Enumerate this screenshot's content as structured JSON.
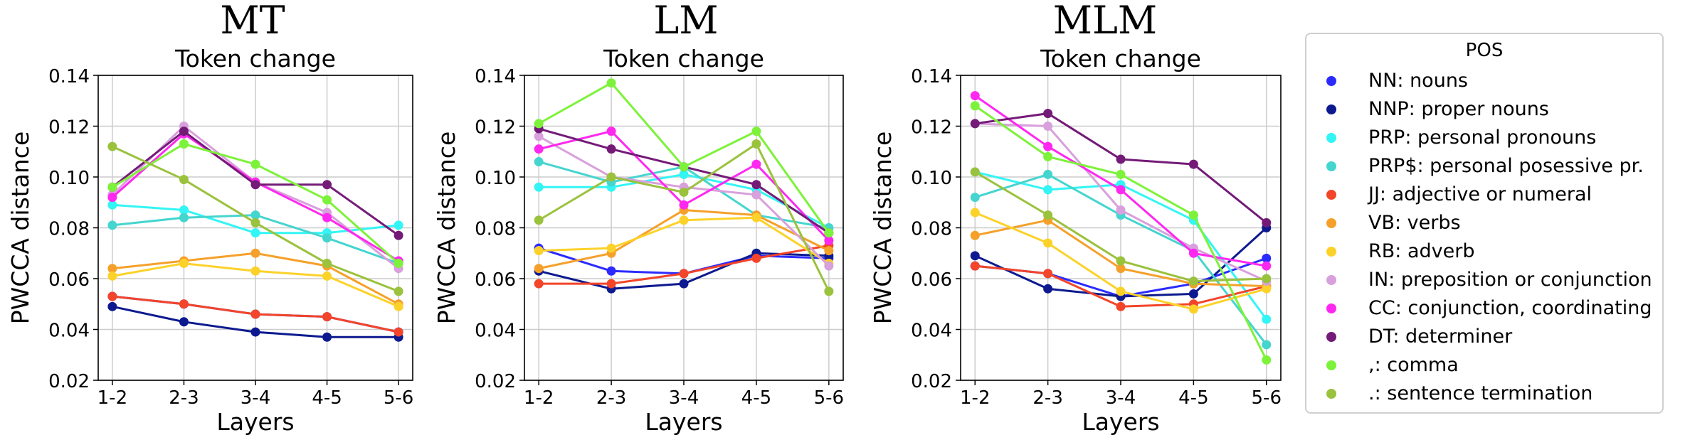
{
  "panel_titles": [
    "MT",
    "LM",
    "MLM"
  ],
  "legend": {
    "title": "POS",
    "items": [
      {
        "label": "NN: nouns",
        "color": "#2b2bff"
      },
      {
        "label": "NNP: proper nouns",
        "color": "#0d1a8f"
      },
      {
        "label": "PRP: personal pronouns",
        "color": "#33f5f5"
      },
      {
        "label": "PRP$: personal posessive pr.",
        "color": "#45d5cf"
      },
      {
        "label": "JJ: adjective or numeral",
        "color": "#f2452a"
      },
      {
        "label": "VB: verbs",
        "color": "#f5a02a"
      },
      {
        "label": "RB: adverb",
        "color": "#fcd22a"
      },
      {
        "label": "IN: preposition or conjunction",
        "color": "#d8a0dc"
      },
      {
        "label": "CC: conjunction, coordinating",
        "color": "#ff28f0"
      },
      {
        "label": "DT: determiner",
        "color": "#741b78"
      },
      {
        "label": ",: comma",
        "color": "#7df23a"
      },
      {
        "label": ".: sentence termination",
        "color": "#9ac23d"
      }
    ]
  },
  "chart_data": [
    {
      "type": "line",
      "title": "Token change",
      "xlabel": "Layers",
      "ylabel": "PWCCA distance",
      "categories": [
        "1-2",
        "2-3",
        "3-4",
        "4-5",
        "5-6"
      ],
      "ylim": [
        0.02,
        0.14
      ],
      "yticks": [
        "0.02",
        "0.04",
        "0.06",
        "0.08",
        "0.10",
        "0.12",
        "0.14"
      ],
      "grid": true,
      "series": [
        {
          "name": "NN: nouns",
          "values": [
            0.053,
            0.05,
            0.046,
            0.045,
            0.039
          ]
        },
        {
          "name": "NNP: proper nouns",
          "values": [
            0.049,
            0.043,
            0.039,
            0.037,
            0.037
          ]
        },
        {
          "name": "PRP: personal pronouns",
          "values": [
            0.089,
            0.087,
            0.078,
            0.078,
            0.081
          ]
        },
        {
          "name": "PRP$: personal posessive pr.",
          "values": [
            0.081,
            0.084,
            0.085,
            0.076,
            0.066
          ]
        },
        {
          "name": "JJ: adjective or numeral",
          "values": [
            0.053,
            0.05,
            0.046,
            0.045,
            0.039
          ]
        },
        {
          "name": "VB: verbs",
          "values": [
            0.064,
            0.067,
            0.07,
            0.065,
            0.05
          ]
        },
        {
          "name": "RB: adverb",
          "values": [
            0.061,
            0.066,
            0.063,
            0.061,
            0.049
          ]
        },
        {
          "name": "IN: preposition or conjunction",
          "values": [
            0.093,
            0.12,
            0.098,
            0.086,
            0.064
          ]
        },
        {
          "name": "CC: conjunction, coordinating",
          "values": [
            0.092,
            0.117,
            0.098,
            0.084,
            0.067
          ]
        },
        {
          "name": "DT: determiner",
          "values": [
            0.096,
            0.118,
            0.097,
            0.097,
            0.077
          ]
        },
        {
          "name": ",: comma",
          "values": [
            0.096,
            0.113,
            0.105,
            0.091,
            0.066
          ]
        },
        {
          "name": ".: sentence termination",
          "values": [
            0.112,
            0.099,
            0.082,
            0.066,
            0.055
          ]
        }
      ]
    },
    {
      "type": "line",
      "title": "Token change",
      "xlabel": "Layers",
      "ylabel": "PWCCA distance",
      "categories": [
        "1-2",
        "2-3",
        "3-4",
        "4-5",
        "5-6"
      ],
      "ylim": [
        0.02,
        0.14
      ],
      "yticks": [
        "0.02",
        "0.04",
        "0.06",
        "0.08",
        "0.10",
        "0.12",
        "0.14"
      ],
      "grid": true,
      "series": [
        {
          "name": "NN: nouns",
          "values": [
            0.072,
            0.063,
            0.062,
            0.069,
            0.068
          ]
        },
        {
          "name": "NNP: proper nouns",
          "values": [
            0.063,
            0.056,
            0.058,
            0.07,
            0.069
          ]
        },
        {
          "name": "PRP: personal pronouns",
          "values": [
            0.096,
            0.096,
            0.101,
            0.095,
            0.08
          ]
        },
        {
          "name": "PRP$: personal posessive pr.",
          "values": [
            0.106,
            0.098,
            0.104,
            0.085,
            0.08
          ]
        },
        {
          "name": "JJ: adjective or numeral",
          "values": [
            0.058,
            0.058,
            0.062,
            0.068,
            0.073
          ]
        },
        {
          "name": "VB: verbs",
          "values": [
            0.064,
            0.07,
            0.087,
            0.085,
            0.071
          ]
        },
        {
          "name": "RB: adverb",
          "values": [
            0.071,
            0.072,
            0.083,
            0.084,
            0.066
          ]
        },
        {
          "name": "IN: preposition or conjunction",
          "values": [
            0.116,
            0.1,
            0.096,
            0.093,
            0.065
          ]
        },
        {
          "name": "CC: conjunction, coordinating",
          "values": [
            0.111,
            0.118,
            0.089,
            0.105,
            0.075
          ]
        },
        {
          "name": "DT: determiner",
          "values": [
            0.119,
            0.111,
            0.104,
            0.097,
            0.078
          ]
        },
        {
          "name": ",: comma",
          "values": [
            0.121,
            0.137,
            0.104,
            0.118,
            0.078
          ]
        },
        {
          "name": ".: sentence termination",
          "values": [
            0.083,
            0.1,
            0.094,
            0.113,
            0.055
          ]
        }
      ]
    },
    {
      "type": "line",
      "title": "Token change",
      "xlabel": "Layers",
      "ylabel": "PWCCA distance",
      "categories": [
        "1-2",
        "2-3",
        "3-4",
        "4-5",
        "5-6"
      ],
      "ylim": [
        0.02,
        0.14
      ],
      "yticks": [
        "0.02",
        "0.04",
        "0.06",
        "0.08",
        "0.10",
        "0.12",
        "0.14"
      ],
      "grid": true,
      "series": [
        {
          "name": "NN: nouns",
          "values": [
            0.065,
            0.062,
            0.053,
            0.058,
            0.068
          ]
        },
        {
          "name": "NNP: proper nouns",
          "values": [
            0.069,
            0.056,
            0.053,
            0.054,
            0.08
          ]
        },
        {
          "name": "PRP: personal pronouns",
          "values": [
            0.102,
            0.095,
            0.097,
            0.083,
            0.044
          ]
        },
        {
          "name": "PRP$: personal posessive pr.",
          "values": [
            0.092,
            0.101,
            0.085,
            0.071,
            0.034
          ]
        },
        {
          "name": "JJ: adjective or numeral",
          "values": [
            0.065,
            0.062,
            0.049,
            0.05,
            0.057
          ]
        },
        {
          "name": "VB: verbs",
          "values": [
            0.077,
            0.083,
            0.064,
            0.058,
            0.057
          ]
        },
        {
          "name": "RB: adverb",
          "values": [
            0.086,
            0.074,
            0.055,
            0.048,
            0.056
          ]
        },
        {
          "name": "IN: preposition or conjunction",
          "values": [
            0.121,
            0.12,
            0.087,
            0.072,
            0.059
          ]
        },
        {
          "name": "CC: conjunction, coordinating",
          "values": [
            0.132,
            0.112,
            0.095,
            0.07,
            0.065
          ]
        },
        {
          "name": "DT: determiner",
          "values": [
            0.121,
            0.125,
            0.107,
            0.105,
            0.082
          ]
        },
        {
          "name": ",: comma",
          "values": [
            0.128,
            0.108,
            0.101,
            0.085,
            0.028
          ]
        },
        {
          "name": ".: sentence termination",
          "values": [
            0.102,
            0.085,
            0.067,
            0.059,
            0.06
          ]
        }
      ]
    }
  ]
}
